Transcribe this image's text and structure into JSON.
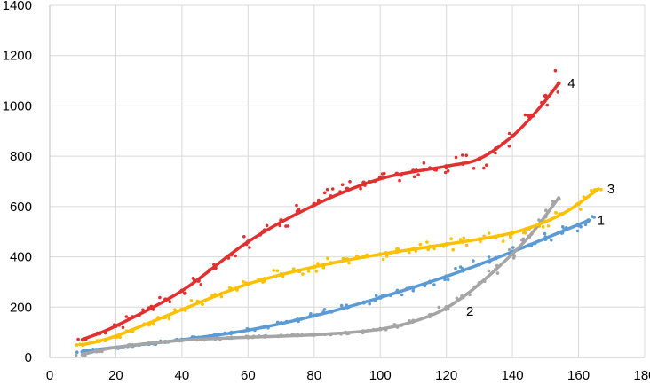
{
  "chart_data": {
    "type": "scatter",
    "title": "",
    "xlabel": "",
    "ylabel": "",
    "xlim": [
      0,
      180
    ],
    "ylim": [
      0,
      1400
    ],
    "x_ticks": [
      "0",
      "20",
      "40",
      "60",
      "80",
      "100",
      "120",
      "140",
      "160",
      "180"
    ],
    "y_ticks": [
      "0",
      "200",
      "400",
      "600",
      "800",
      "1000",
      "1200",
      "1400"
    ],
    "grid": true,
    "legend": "none",
    "series": [
      {
        "label": "1",
        "color": "#5b9bd5",
        "x": [
          10,
          15,
          20,
          25,
          30,
          35,
          40,
          45,
          50,
          55,
          60,
          65,
          70,
          75,
          80,
          85,
          90,
          95,
          100,
          105,
          110,
          115,
          120,
          125,
          130,
          135,
          140,
          145,
          150,
          155,
          160,
          163
        ],
        "y": [
          22,
          30,
          38,
          46,
          54,
          62,
          70,
          78,
          88,
          98,
          110,
          122,
          136,
          150,
          166,
          182,
          200,
          218,
          238,
          258,
          278,
          300,
          322,
          345,
          370,
          395,
          420,
          445,
          470,
          495,
          525,
          545
        ],
        "trend": [
          [
            10,
            25
          ],
          [
            20,
            40
          ],
          [
            40,
            70
          ],
          [
            60,
            108
          ],
          [
            80,
            165
          ],
          [
            100,
            238
          ],
          [
            120,
            322
          ],
          [
            140,
            420
          ],
          [
            163,
            545
          ]
        ]
      },
      {
        "label": "2",
        "color": "#a5a5a5",
        "x": [
          10,
          15,
          20,
          25,
          30,
          35,
          40,
          45,
          50,
          55,
          60,
          65,
          70,
          75,
          80,
          85,
          90,
          95,
          100,
          105,
          110,
          115,
          120,
          125,
          130,
          135,
          140,
          145,
          150,
          154
        ],
        "y": [
          10,
          25,
          38,
          48,
          55,
          62,
          68,
          72,
          75,
          78,
          80,
          83,
          86,
          88,
          90,
          92,
          96,
          102,
          112,
          125,
          145,
          168,
          200,
          240,
          295,
          350,
          410,
          480,
          560,
          630
        ],
        "trend": [
          [
            10,
            12
          ],
          [
            20,
            40
          ],
          [
            40,
            68
          ],
          [
            60,
            80
          ],
          [
            80,
            90
          ],
          [
            100,
            112
          ],
          [
            115,
            165
          ],
          [
            125,
            240
          ],
          [
            135,
            350
          ],
          [
            145,
            480
          ],
          [
            154,
            635
          ]
        ]
      },
      {
        "label": "3",
        "color": "#ffc000",
        "x": [
          10,
          15,
          20,
          25,
          30,
          35,
          40,
          45,
          50,
          55,
          60,
          65,
          70,
          75,
          80,
          85,
          90,
          95,
          100,
          105,
          110,
          115,
          120,
          125,
          130,
          135,
          140,
          145,
          150,
          155,
          160,
          165
        ],
        "y": [
          50,
          65,
          82,
          105,
          130,
          160,
          190,
          220,
          248,
          270,
          292,
          312,
          330,
          345,
          360,
          375,
          390,
          400,
          410,
          420,
          432,
          440,
          450,
          460,
          470,
          480,
          495,
          512,
          540,
          570,
          610,
          665
        ],
        "trend": [
          [
            10,
            50
          ],
          [
            20,
            85
          ],
          [
            40,
            190
          ],
          [
            60,
            292
          ],
          [
            80,
            360
          ],
          [
            100,
            410
          ],
          [
            120,
            450
          ],
          [
            140,
            495
          ],
          [
            155,
            570
          ],
          [
            166,
            670
          ]
        ]
      },
      {
        "label": "4",
        "color": "#e03030",
        "x": [
          10,
          15,
          20,
          25,
          30,
          35,
          40,
          45,
          50,
          55,
          60,
          65,
          70,
          75,
          80,
          85,
          90,
          95,
          100,
          105,
          110,
          115,
          120,
          125,
          130,
          135,
          140,
          145,
          150,
          154
        ],
        "y": [
          70,
          95,
          125,
          160,
          195,
          230,
          265,
          305,
          355,
          410,
          460,
          505,
          545,
          580,
          610,
          640,
          670,
          695,
          715,
          730,
          742,
          752,
          760,
          770,
          790,
          830,
          880,
          960,
          1040,
          1090
        ],
        "trend": [
          [
            10,
            72
          ],
          [
            20,
            125
          ],
          [
            40,
            265
          ],
          [
            60,
            460
          ],
          [
            80,
            605
          ],
          [
            100,
            710
          ],
          [
            120,
            760
          ],
          [
            130,
            790
          ],
          [
            140,
            880
          ],
          [
            148,
            990
          ],
          [
            154,
            1090
          ]
        ]
      }
    ]
  }
}
